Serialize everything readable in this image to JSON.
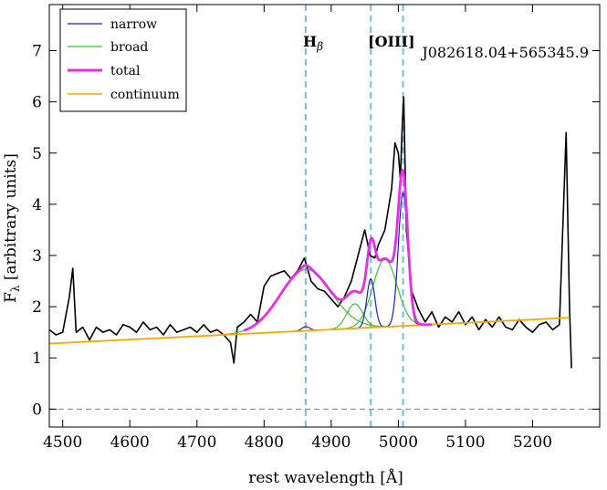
{
  "chart_data": {
    "type": "line",
    "title": "",
    "object_name": "J082618.04+565345.9",
    "xlabel": "rest wavelength [Å]",
    "ylabel_main": "F",
    "ylabel_sub": "λ",
    "ylabel_rest": " [arbitrary units]",
    "xlim": [
      4480,
      5300
    ],
    "ylim": [
      -0.35,
      7.9
    ],
    "x_ticks": [
      4500,
      4600,
      4700,
      4800,
      4900,
      5000,
      5100,
      5200
    ],
    "x_tick_labels": [
      "4500",
      "4600",
      "4700",
      "4800",
      "4900",
      "5000",
      "5100",
      "5200"
    ],
    "y_ticks": [
      0,
      1,
      2,
      3,
      4,
      5,
      6,
      7
    ],
    "y_tick_labels": [
      "0",
      "1",
      "2",
      "3",
      "4",
      "5",
      "6",
      "7"
    ],
    "zero_line": 0,
    "vlines": [
      {
        "name": "hbeta",
        "x": 4862
      },
      {
        "name": "oiii-4959",
        "x": 4959
      },
      {
        "name": "oiii-5007",
        "x": 5007
      }
    ],
    "annotations": [
      {
        "name": "hbeta",
        "main": "H",
        "sub": "β",
        "x": 4862
      },
      {
        "name": "oiii",
        "text": "[OIII]",
        "x": 4985
      }
    ],
    "legend": [
      {
        "name": "narrow",
        "label": "narrow",
        "color": "#1f1fbf"
      },
      {
        "name": "broad",
        "label": "broad",
        "color": "#3cbf3c"
      },
      {
        "name": "total",
        "label": "total",
        "color": "#e62ee6"
      },
      {
        "name": "continuum",
        "label": "continuum",
        "color": "#ffa500"
      }
    ],
    "colors": {
      "data": "#000000",
      "narrow": "#1f1fbf",
      "broad": "#3cbf3c",
      "total": "#e62ee6",
      "continuum": "#ffa500",
      "vline": "#7cc3e3",
      "zero": "#808080"
    },
    "continuum": {
      "slope": 0.000652,
      "intercept": 1.28,
      "x0": 4480
    },
    "narrow_components": [
      {
        "center": 4862,
        "amp": 0.08,
        "sigma": 6
      },
      {
        "center": 4959,
        "amp": 0.95,
        "sigma": 6
      },
      {
        "center": 5007,
        "amp": 2.6,
        "sigma": 7
      }
    ],
    "broad_components": [
      {
        "center": 4862,
        "amp": 1.2,
        "sigma": 38
      },
      {
        "center": 4935,
        "amp": 0.48,
        "sigma": 12
      },
      {
        "center": 4980,
        "amp": 1.32,
        "sigma": 18
      }
    ],
    "spectrum_x": [
      4480,
      4490,
      4500,
      4510,
      4515,
      4520,
      4530,
      4540,
      4550,
      4560,
      4570,
      4580,
      4590,
      4600,
      4610,
      4620,
      4630,
      4640,
      4650,
      4660,
      4670,
      4680,
      4690,
      4700,
      4710,
      4720,
      4730,
      4740,
      4750,
      4755,
      4760,
      4770,
      4780,
      4790,
      4800,
      4810,
      4820,
      4830,
      4840,
      4850,
      4860,
      4870,
      4880,
      4890,
      4900,
      4910,
      4920,
      4930,
      4940,
      4950,
      4958,
      4965,
      4970,
      4980,
      4990,
      4995,
      5000,
      5003,
      5006,
      5008,
      5012,
      5020,
      5030,
      5040,
      5050,
      5060,
      5070,
      5080,
      5090,
      5100,
      5110,
      5120,
      5130,
      5140,
      5150,
      5160,
      5170,
      5180,
      5190,
      5200,
      5210,
      5220,
      5230,
      5240,
      5250,
      5255,
      5258
    ],
    "spectrum_y": [
      1.55,
      1.45,
      1.5,
      2.2,
      2.75,
      1.5,
      1.6,
      1.35,
      1.6,
      1.5,
      1.55,
      1.45,
      1.65,
      1.6,
      1.5,
      1.7,
      1.55,
      1.6,
      1.45,
      1.65,
      1.5,
      1.55,
      1.6,
      1.5,
      1.65,
      1.5,
      1.55,
      1.45,
      1.3,
      0.9,
      1.6,
      1.7,
      1.85,
      1.7,
      2.4,
      2.6,
      2.65,
      2.7,
      2.55,
      2.7,
      2.95,
      2.5,
      2.35,
      2.3,
      2.15,
      2.0,
      2.2,
      2.5,
      3.0,
      3.5,
      3.0,
      2.95,
      3.2,
      3.5,
      4.3,
      5.2,
      5.0,
      4.5,
      5.6,
      6.1,
      3.5,
      2.3,
      1.95,
      1.7,
      1.9,
      1.6,
      1.8,
      1.7,
      1.9,
      1.65,
      1.8,
      1.55,
      1.75,
      1.6,
      1.8,
      1.6,
      1.55,
      1.75,
      1.6,
      1.5,
      1.65,
      1.7,
      1.55,
      1.65,
      5.4,
      2.0,
      0.8
    ]
  }
}
